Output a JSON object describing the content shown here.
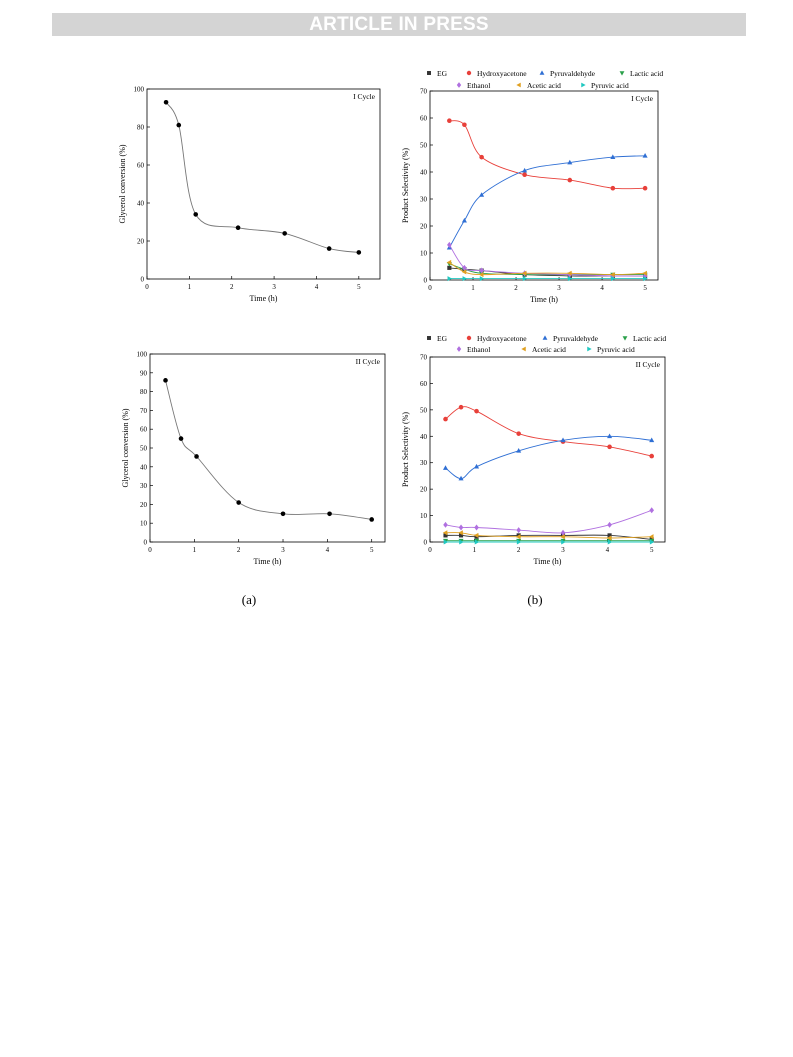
{
  "header": {
    "banner_text": "ARTICLE IN PRESS"
  },
  "captions": {
    "a": "(a)",
    "b": "(b)"
  },
  "colors": {
    "EG": "#333333",
    "Hydroxyacetone": "#e8403a",
    "Pyruvaldehyde": "#2f6fd4",
    "Lactic acid": "#2aa04a",
    "Ethanol": "#b070e0",
    "Acetic acid": "#e0a020",
    "Pyruvic acid": "#20c8c0",
    "conversion": "#000000"
  },
  "chart_data": [
    {
      "id": "conv1",
      "type": "scatter",
      "annotation": "I Cycle",
      "xlabel": "Time (h)",
      "ylabel": "Glycerol conversion (%)",
      "xlim": [
        0,
        5.5
      ],
      "ylim": [
        0,
        100
      ],
      "xticks": [
        0,
        1,
        2,
        3,
        4,
        5
      ],
      "yticks": [
        0,
        20,
        40,
        60,
        80,
        100
      ],
      "series": [
        {
          "key": "conversion",
          "x": [
            0.45,
            0.75,
            1.15,
            2.15,
            3.25,
            4.3,
            5.0
          ],
          "y": [
            93,
            81,
            34,
            27,
            24,
            16,
            14
          ]
        }
      ]
    },
    {
      "id": "sel1",
      "type": "scatter",
      "annotation": "I Cycle",
      "xlabel": "Time (h)",
      "ylabel": "Product Selectivity (%)",
      "xlim": [
        0,
        5.3
      ],
      "ylim": [
        0,
        70
      ],
      "xticks": [
        0,
        1,
        2,
        3,
        4,
        5
      ],
      "yticks": [
        0,
        10,
        20,
        30,
        40,
        50,
        60,
        70
      ],
      "legend": [
        "EG",
        "Hydroxyacetone",
        "Pyruvaldehyde",
        "Lactic acid",
        "Ethanol",
        "Acetic acid",
        "Pyruvic acid"
      ],
      "series": [
        {
          "name": "EG",
          "x": [
            0.45,
            0.8,
            1.2,
            2.2,
            3.25,
            4.25,
            5.0
          ],
          "y": [
            4.5,
            4.0,
            3.5,
            2.0,
            1.5,
            1.5,
            1.5
          ]
        },
        {
          "name": "Hydroxyacetone",
          "x": [
            0.45,
            0.8,
            1.2,
            2.2,
            3.25,
            4.25,
            5.0
          ],
          "y": [
            59,
            57.5,
            45.5,
            39,
            37,
            34,
            34
          ]
        },
        {
          "name": "Pyruvaldehyde",
          "x": [
            0.45,
            0.8,
            1.2,
            2.2,
            3.25,
            4.25,
            5.0
          ],
          "y": [
            12,
            22,
            31.5,
            40.5,
            43.5,
            45.5,
            46
          ]
        },
        {
          "name": "Lactic acid",
          "x": [
            0.45,
            0.8,
            1.2,
            2.2,
            3.25,
            4.25,
            5.0
          ],
          "y": [
            6,
            4,
            2.5,
            2,
            2,
            2,
            2
          ]
        },
        {
          "name": "Ethanol",
          "x": [
            0.45,
            0.8,
            1.2,
            2.2,
            3.25,
            4.25,
            5.0
          ],
          "y": [
            13,
            4.5,
            3.5,
            2.5,
            2,
            1.5,
            1.5
          ]
        },
        {
          "name": "Acetic acid",
          "x": [
            0.45,
            0.8,
            1.2,
            2.2,
            3.25,
            4.25,
            5.0
          ],
          "y": [
            6.5,
            3,
            2,
            2.5,
            2.5,
            2,
            2.5
          ]
        },
        {
          "name": "Pyruvic acid",
          "x": [
            0.45,
            0.8,
            1.2,
            2.2,
            3.25,
            4.25,
            5.0
          ],
          "y": [
            0.5,
            0.5,
            0.5,
            0.5,
            0.5,
            0.5,
            0.5
          ]
        }
      ]
    },
    {
      "id": "conv2",
      "type": "scatter",
      "annotation": "II Cycle",
      "xlabel": "Time (h)",
      "ylabel": "Glycerol conversion (%)",
      "xlim": [
        0,
        5.3
      ],
      "ylim": [
        0,
        100
      ],
      "xticks": [
        0,
        1,
        2,
        3,
        4,
        5
      ],
      "yticks": [
        0,
        10,
        20,
        30,
        40,
        50,
        60,
        70,
        80,
        90,
        100
      ],
      "series": [
        {
          "key": "conversion",
          "x": [
            0.35,
            0.7,
            1.05,
            2.0,
            3.0,
            4.05,
            5.0
          ],
          "y": [
            86,
            55,
            45.5,
            21,
            15,
            15,
            12
          ]
        }
      ]
    },
    {
      "id": "sel2",
      "type": "scatter",
      "annotation": "II Cycle",
      "xlabel": "Time (h)",
      "ylabel": "Product Selectivity (%)",
      "xlim": [
        0,
        5.3
      ],
      "ylim": [
        0,
        70
      ],
      "xticks": [
        0,
        1,
        2,
        3,
        4,
        5
      ],
      "yticks": [
        0,
        10,
        20,
        30,
        40,
        50,
        60,
        70
      ],
      "legend": [
        "EG",
        "Hydroxyacetone",
        "Pyruvaldehyde",
        "Lactic acid",
        "Ethanol",
        "Acetic acid",
        "Pyruvic acid"
      ],
      "series": [
        {
          "name": "EG",
          "x": [
            0.35,
            0.7,
            1.05,
            2.0,
            3.0,
            4.05,
            5.0
          ],
          "y": [
            2.5,
            2.5,
            2.0,
            2.5,
            2.5,
            2.5,
            1.0
          ]
        },
        {
          "name": "Hydroxyacetone",
          "x": [
            0.35,
            0.7,
            1.05,
            2.0,
            3.0,
            4.05,
            5.0
          ],
          "y": [
            46.5,
            51,
            49.5,
            41,
            38,
            36,
            32.5
          ]
        },
        {
          "name": "Pyruvaldehyde",
          "x": [
            0.35,
            0.7,
            1.05,
            2.0,
            3.0,
            4.05,
            5.0
          ],
          "y": [
            28,
            24,
            28.5,
            34.5,
            38.5,
            40,
            38.5
          ]
        },
        {
          "name": "Lactic acid",
          "x": [
            0.35,
            0.7,
            1.05,
            2.0,
            3.0,
            4.05,
            5.0
          ],
          "y": [
            0.5,
            0.5,
            0.5,
            0.5,
            0.5,
            0.5,
            0.5
          ]
        },
        {
          "name": "Ethanol",
          "x": [
            0.35,
            0.7,
            1.05,
            2.0,
            3.0,
            4.05,
            5.0
          ],
          "y": [
            6.5,
            5.5,
            5.5,
            4.5,
            3.5,
            6.5,
            12
          ]
        },
        {
          "name": "Acetic acid",
          "x": [
            0.35,
            0.7,
            1.05,
            2.0,
            3.0,
            4.05,
            5.0
          ],
          "y": [
            3.5,
            3.5,
            2.5,
            2.0,
            2.0,
            1.5,
            2.0
          ]
        },
        {
          "name": "Pyruvic acid",
          "x": [
            0.35,
            0.7,
            1.05,
            2.0,
            3.0,
            4.05,
            5.0
          ],
          "y": [
            0,
            0,
            0,
            0,
            0,
            0,
            0
          ]
        }
      ]
    }
  ]
}
